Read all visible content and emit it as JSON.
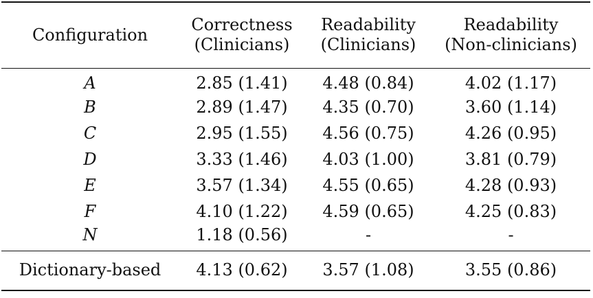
{
  "table": {
    "headers": [
      {
        "lines": [
          "Configuration"
        ]
      },
      {
        "lines": [
          "Correctness",
          "(Clinicians)"
        ]
      },
      {
        "lines": [
          "Readability",
          "(Clinicians)"
        ]
      },
      {
        "lines": [
          "Readability",
          "(Non-clinicians)"
        ]
      }
    ],
    "rows": [
      {
        "config": "A",
        "correctness_clinicians": "2.85 (1.41)",
        "readability_clinicians": "4.48 (0.84)",
        "readability_nonclinicians": "4.02 (1.17)"
      },
      {
        "config": "B",
        "correctness_clinicians": "2.89 (1.47)",
        "readability_clinicians": "4.35 (0.70)",
        "readability_nonclinicians": "3.60 (1.14)"
      },
      {
        "config": "C",
        "correctness_clinicians": "2.95 (1.55)",
        "readability_clinicians": "4.56 (0.75)",
        "readability_nonclinicians": "4.26 (0.95)"
      },
      {
        "config": "D",
        "correctness_clinicians": "3.33 (1.46)",
        "readability_clinicians": "4.03 (1.00)",
        "readability_nonclinicians": "3.81 (0.79)"
      },
      {
        "config": "E",
        "correctness_clinicians": "3.57 (1.34)",
        "readability_clinicians": "4.55 (0.65)",
        "readability_nonclinicians": "4.28 (0.93)"
      },
      {
        "config": "F",
        "correctness_clinicians": "4.10 (1.22)",
        "readability_clinicians": "4.59 (0.65)",
        "readability_nonclinicians": "4.25 (0.83)"
      },
      {
        "config": "N",
        "correctness_clinicians": "1.18 (0.56)",
        "readability_clinicians": "-",
        "readability_nonclinicians": "-"
      }
    ],
    "summary_row": {
      "config": "Dictionary-based",
      "correctness_clinicians": "4.13 (0.62)",
      "readability_clinicians": "3.57 (1.08)",
      "readability_nonclinicians": "3.55 (0.86)"
    }
  }
}
